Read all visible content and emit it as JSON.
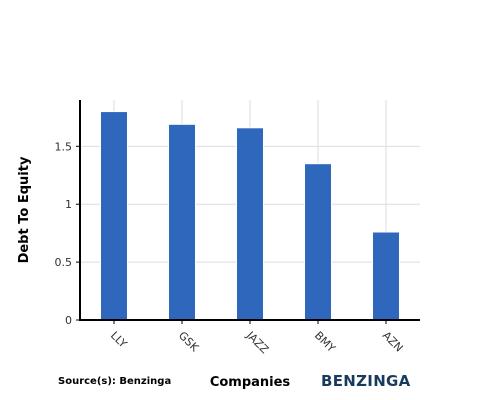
{
  "chart_data": {
    "type": "bar",
    "categories": [
      "LLY",
      "GSK",
      "JAZZ",
      "BMY",
      "AZN"
    ],
    "values": [
      1.8,
      1.69,
      1.66,
      1.35,
      0.76
    ],
    "xlabel": "Companies",
    "ylabel": "Debt To Equity",
    "ylim": [
      0,
      1.9
    ],
    "yticks": [
      0,
      0.5,
      1,
      1.5
    ],
    "ytick_labels": [
      "0",
      "0.5",
      "1",
      "1.5"
    ],
    "grid": true,
    "bar_color": "#2f67bd"
  },
  "footer": {
    "source": "Source(s): Benzinga",
    "brand": "BENZINGA"
  }
}
